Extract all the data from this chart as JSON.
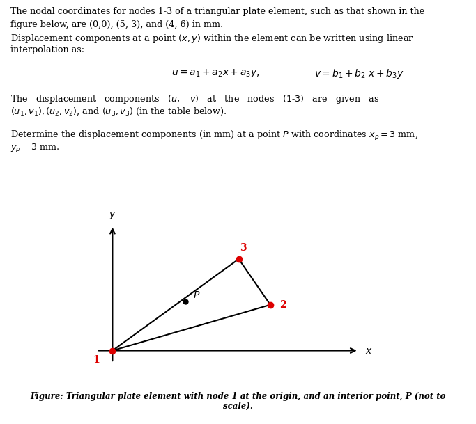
{
  "background_color": "#ffffff",
  "fig_width": 6.83,
  "fig_height": 6.09,
  "dpi": 100,
  "nodes": {
    "1": [
      0,
      0
    ],
    "2": [
      5,
      3
    ],
    "3": [
      4,
      6
    ]
  },
  "point_P": [
    2.3,
    3.2
  ],
  "node_color": "#dd0000",
  "line_color": "#000000",
  "axis_color": "#000000",
  "text_lines": [
    "The nodal coordinates for nodes 1-3 of a triangular plate element, such as that shown in the",
    "figure below, are (0,0), (5, 3), and (4, 6) in mm.",
    "Displacement components at a point $(x, y)$ within the element can be written using linear",
    "interpolation as:"
  ],
  "disp_line1": "The   displacement   components   $(u,$   $v)$   at   the   nodes   $(1$-$3)$   are   given   as",
  "disp_line2": "$(u_1, v_1), (u_2, v_2)$, and $(u_3, v_3)$ (in the table below).",
  "det_line1": "Determine the displacement components (in mm) at a point $P$ with coordinates $x_p = 3$ mm,",
  "det_line2": "$y_p = 3$ mm.",
  "eq1": "$u = a_1 + a_2 x + a_3 y,$",
  "eq2": "$v = b_1 + b_2\\ x + b_3 y$",
  "caption_line1": "Figure: Triangular plate element with node 1 at the origin, and an interior point, P (not to",
  "caption_line2": "scale).",
  "fontsize_body": 9.2,
  "fontsize_eq": 10.0,
  "fontsize_caption": 8.5
}
